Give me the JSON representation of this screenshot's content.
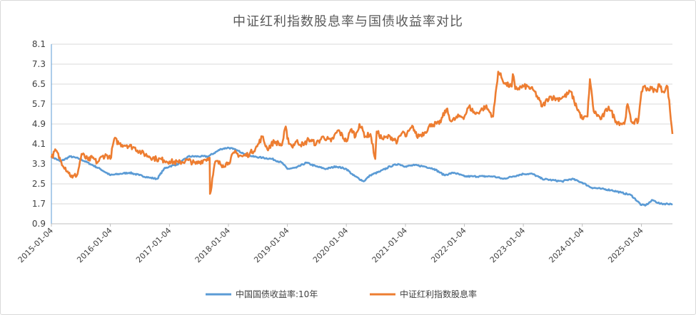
{
  "chart_data": {
    "type": "line",
    "title": "中证红利指数股息率与国债收益率对比",
    "ylim": [
      0.9,
      8.1
    ],
    "yticks": [
      "0.9",
      "1.7",
      "2.5",
      "3.3",
      "4.1",
      "4.9",
      "5.7",
      "6.5",
      "7.3",
      "8.1"
    ],
    "xlim": [
      "2015-01-04",
      "2025-07-15"
    ],
    "xticks": [
      "2015-01-04",
      "2016-01-04",
      "2017-01-04",
      "2018-01-04",
      "2019-01-04",
      "2020-01-04",
      "2021-01-04",
      "2022-01-04",
      "2023-01-04",
      "2024-01-04",
      "2025-01-04"
    ],
    "grid": "horizontal",
    "legend_position": "bottom",
    "series": [
      {
        "name": "中国国债收益率:10年",
        "color": "#5b9bd5",
        "x": [
          "2015-01-04",
          "2015-03-01",
          "2015-05-01",
          "2015-07-01",
          "2015-09-01",
          "2015-11-01",
          "2016-01-04",
          "2016-03-01",
          "2016-05-01",
          "2016-07-01",
          "2016-09-01",
          "2016-10-20",
          "2016-12-01",
          "2017-01-04",
          "2017-03-01",
          "2017-05-01",
          "2017-07-01",
          "2017-09-01",
          "2017-11-20",
          "2018-01-04",
          "2018-02-01",
          "2018-04-01",
          "2018-06-01",
          "2018-08-01",
          "2018-10-01",
          "2018-12-01",
          "2019-01-04",
          "2019-03-01",
          "2019-05-01",
          "2019-07-01",
          "2019-09-01",
          "2019-11-01",
          "2020-01-04",
          "2020-02-15",
          "2020-04-20",
          "2020-06-01",
          "2020-08-01",
          "2020-10-01",
          "2020-11-20",
          "2021-01-04",
          "2021-03-01",
          "2021-05-01",
          "2021-07-01",
          "2021-09-01",
          "2021-11-01",
          "2022-01-04",
          "2022-03-01",
          "2022-05-01",
          "2022-07-01",
          "2022-09-01",
          "2022-11-01",
          "2023-01-04",
          "2023-03-01",
          "2023-05-01",
          "2023-07-01",
          "2023-09-01",
          "2023-11-01",
          "2024-01-04",
          "2024-03-01",
          "2024-05-01",
          "2024-07-01",
          "2024-09-01",
          "2024-11-01",
          "2025-01-04",
          "2025-02-01",
          "2025-03-15",
          "2025-05-01",
          "2025-07-15"
        ],
        "values": [
          3.6,
          3.4,
          3.6,
          3.5,
          3.3,
          3.1,
          2.85,
          2.9,
          2.95,
          2.85,
          2.75,
          2.7,
          3.1,
          3.2,
          3.3,
          3.6,
          3.6,
          3.6,
          3.9,
          3.95,
          3.9,
          3.75,
          3.6,
          3.55,
          3.5,
          3.35,
          3.1,
          3.15,
          3.35,
          3.2,
          3.1,
          3.2,
          3.1,
          2.85,
          2.6,
          2.85,
          3.0,
          3.2,
          3.3,
          3.2,
          3.25,
          3.2,
          3.1,
          2.85,
          2.95,
          2.8,
          2.8,
          2.8,
          2.8,
          2.7,
          2.8,
          2.9,
          2.9,
          2.7,
          2.65,
          2.6,
          2.7,
          2.55,
          2.35,
          2.3,
          2.25,
          2.15,
          2.05,
          1.65,
          1.65,
          1.85,
          1.7,
          1.7
        ]
      },
      {
        "name": "中证红利指数股息率",
        "color": "#ed7d31",
        "x": [
          "2015-01-04",
          "2015-02-01",
          "2015-03-01",
          "2015-04-15",
          "2015-05-15",
          "2015-06-15",
          "2015-07-10",
          "2015-08-20",
          "2015-09-15",
          "2015-10-15",
          "2015-11-15",
          "2015-12-15",
          "2016-01-04",
          "2016-01-28",
          "2016-03-01",
          "2016-04-15",
          "2016-06-01",
          "2016-07-15",
          "2016-09-01",
          "2016-10-15",
          "2016-12-01",
          "2017-01-04",
          "2017-03-01",
          "2017-05-01",
          "2017-06-15",
          "2017-08-01",
          "2017-09-10",
          "2017-09-12",
          "2017-10-15",
          "2017-12-01",
          "2018-01-04",
          "2018-02-10",
          "2018-04-01",
          "2018-05-15",
          "2018-07-01",
          "2018-08-01",
          "2018-09-01",
          "2018-10-15",
          "2018-12-01",
          "2018-12-25",
          "2019-01-04",
          "2019-02-01",
          "2019-03-01",
          "2019-04-15",
          "2019-05-15",
          "2019-07-01",
          "2019-08-15",
          "2019-10-01",
          "2019-11-15",
          "2020-01-04",
          "2020-02-05",
          "2020-03-01",
          "2020-03-25",
          "2020-05-01",
          "2020-06-01",
          "2020-07-01",
          "2020-07-10",
          "2020-08-15",
          "2020-10-01",
          "2020-11-15",
          "2020-12-20",
          "2021-01-04",
          "2021-02-20",
          "2021-03-15",
          "2021-05-01",
          "2021-06-15",
          "2021-08-01",
          "2021-09-15",
          "2021-10-15",
          "2021-12-01",
          "2022-01-04",
          "2022-02-01",
          "2022-03-15",
          "2022-04-26",
          "2022-05-15",
          "2022-07-01",
          "2022-08-01",
          "2022-09-15",
          "2022-10-24",
          "2022-10-31",
          "2022-11-15",
          "2023-01-04",
          "2023-02-01",
          "2023-03-15",
          "2023-05-01",
          "2023-06-15",
          "2023-08-01",
          "2023-09-15",
          "2023-10-25",
          "2023-11-15",
          "2024-01-04",
          "2024-02-05",
          "2024-02-20",
          "2024-03-15",
          "2024-05-01",
          "2024-06-15",
          "2024-08-01",
          "2024-09-20",
          "2024-10-10",
          "2024-11-01",
          "2024-12-15",
          "2025-01-04",
          "2025-01-20",
          "2025-02-15",
          "2025-03-15",
          "2025-04-07",
          "2025-04-20",
          "2025-05-15",
          "2025-06-15",
          "2025-07-15"
        ],
        "values": [
          3.55,
          3.85,
          3.45,
          3.0,
          2.75,
          2.9,
          3.7,
          3.45,
          3.55,
          3.35,
          3.6,
          3.65,
          3.5,
          4.3,
          4.1,
          4.05,
          3.95,
          3.75,
          3.6,
          3.5,
          3.45,
          3.4,
          3.35,
          3.45,
          3.3,
          3.45,
          3.55,
          2.1,
          3.4,
          3.25,
          3.35,
          3.75,
          3.6,
          3.7,
          4.0,
          4.4,
          3.9,
          4.2,
          4.05,
          4.8,
          4.3,
          4.0,
          4.2,
          4.05,
          4.3,
          4.1,
          4.4,
          4.2,
          4.65,
          4.2,
          4.7,
          4.4,
          4.9,
          4.4,
          4.5,
          3.5,
          4.6,
          4.3,
          4.4,
          4.2,
          4.6,
          4.4,
          4.8,
          4.4,
          4.55,
          4.9,
          4.9,
          5.5,
          5.0,
          5.2,
          5.2,
          5.6,
          5.3,
          5.5,
          5.6,
          5.2,
          7.0,
          6.5,
          6.4,
          6.9,
          6.3,
          6.4,
          6.4,
          6.2,
          5.6,
          6.0,
          5.9,
          6.0,
          6.2,
          5.8,
          5.1,
          5.2,
          6.7,
          5.4,
          5.1,
          5.6,
          5.0,
          4.9,
          5.7,
          5.0,
          5.0,
          6.2,
          6.4,
          6.3,
          6.3,
          6.2,
          6.5,
          6.2,
          6.4,
          4.5
        ]
      }
    ]
  }
}
